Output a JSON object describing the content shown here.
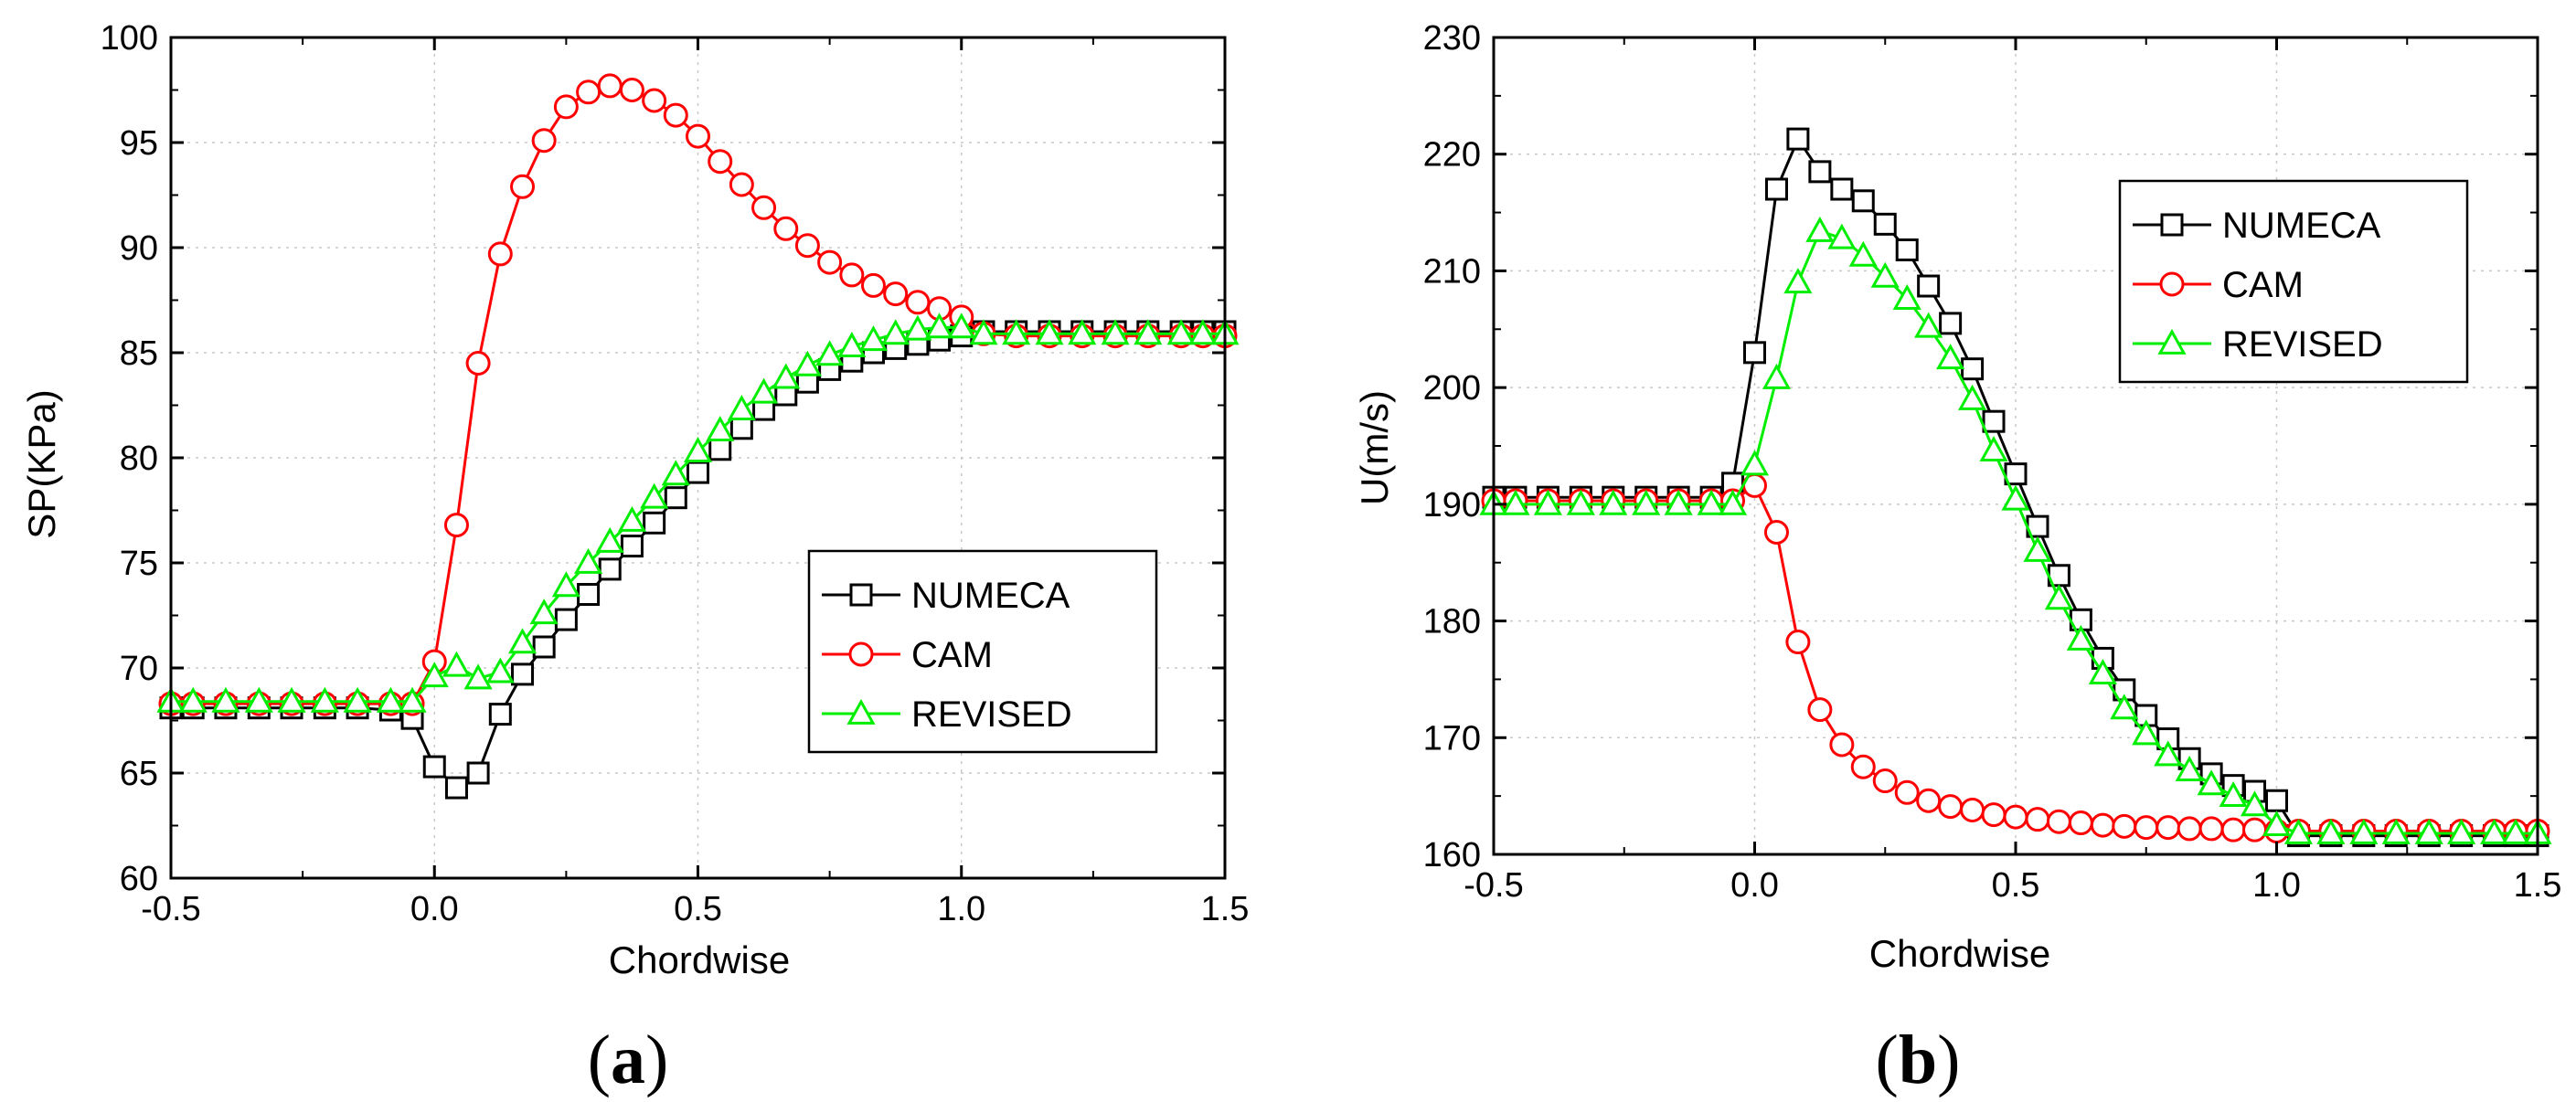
{
  "colors": {
    "NUMECA": "#000000",
    "CAM": "#ff0000",
    "REVISED": "#00ee00",
    "grid": "#c8c8c8"
  },
  "chart_data": [
    {
      "type": "line",
      "caption": {
        "open": "(",
        "letter": "a",
        "close": ")"
      },
      "title": "",
      "xlabel": "Chordwise",
      "ylabel": "SP(KPa)",
      "xlim": [
        -0.5,
        1.5
      ],
      "ylim": [
        60,
        100
      ],
      "xticks": [
        -0.5,
        0.0,
        0.5,
        1.0,
        1.5
      ],
      "xtick_labels": [
        "-0.5",
        "0.0",
        "0.5",
        "1.0",
        "1.5"
      ],
      "yticks": [
        60,
        65,
        70,
        75,
        80,
        85,
        90,
        95,
        100
      ],
      "ytick_labels": [
        "60",
        "65",
        "70",
        "75",
        "80",
        "85",
        "90",
        "95",
        "100"
      ],
      "grid": true,
      "legend_position": "lower-right",
      "series": [
        {
          "name": "NUMECA",
          "marker": "square",
          "x": [
            -0.5,
            -0.458,
            -0.396,
            -0.333,
            -0.271,
            -0.208,
            -0.146,
            -0.083,
            -0.042,
            0.0,
            0.042,
            0.083,
            0.125,
            0.167,
            0.208,
            0.25,
            0.292,
            0.333,
            0.375,
            0.417,
            0.458,
            0.5,
            0.542,
            0.583,
            0.625,
            0.667,
            0.708,
            0.75,
            0.792,
            0.833,
            0.875,
            0.917,
            0.958,
            1.0,
            1.042,
            1.104,
            1.167,
            1.229,
            1.292,
            1.354,
            1.417,
            1.458,
            1.5
          ],
          "y": [
            68.1,
            68.1,
            68.1,
            68.1,
            68.1,
            68.1,
            68.1,
            68.0,
            67.6,
            65.3,
            64.3,
            65.0,
            67.8,
            69.7,
            71.0,
            72.3,
            73.5,
            74.7,
            75.8,
            76.9,
            78.1,
            79.3,
            80.4,
            81.4,
            82.3,
            83.0,
            83.6,
            84.2,
            84.6,
            85.0,
            85.2,
            85.4,
            85.6,
            85.8,
            86.0,
            86.0,
            86.0,
            86.0,
            86.0,
            86.0,
            86.0,
            86.0,
            86.0
          ]
        },
        {
          "name": "CAM",
          "marker": "circle",
          "x": [
            -0.5,
            -0.458,
            -0.396,
            -0.333,
            -0.271,
            -0.208,
            -0.146,
            -0.083,
            -0.042,
            0.0,
            0.042,
            0.083,
            0.125,
            0.167,
            0.208,
            0.25,
            0.292,
            0.333,
            0.375,
            0.417,
            0.458,
            0.5,
            0.542,
            0.583,
            0.625,
            0.667,
            0.708,
            0.75,
            0.792,
            0.833,
            0.875,
            0.917,
            0.958,
            1.0,
            1.042,
            1.104,
            1.167,
            1.229,
            1.292,
            1.354,
            1.417,
            1.458,
            1.5
          ],
          "y": [
            68.3,
            68.3,
            68.3,
            68.3,
            68.3,
            68.3,
            68.3,
            68.3,
            68.3,
            70.3,
            76.8,
            84.5,
            89.7,
            92.9,
            95.1,
            96.7,
            97.4,
            97.7,
            97.5,
            97.0,
            96.3,
            95.3,
            94.1,
            93.0,
            91.9,
            90.9,
            90.1,
            89.3,
            88.7,
            88.2,
            87.8,
            87.4,
            87.1,
            86.7,
            85.9,
            85.8,
            85.8,
            85.8,
            85.8,
            85.8,
            85.8,
            85.8,
            85.8
          ]
        },
        {
          "name": "REVISED",
          "marker": "triangle",
          "x": [
            -0.5,
            -0.458,
            -0.396,
            -0.333,
            -0.271,
            -0.208,
            -0.146,
            -0.083,
            -0.042,
            0.0,
            0.042,
            0.083,
            0.125,
            0.167,
            0.208,
            0.25,
            0.292,
            0.333,
            0.375,
            0.417,
            0.458,
            0.5,
            0.542,
            0.583,
            0.625,
            0.667,
            0.708,
            0.75,
            0.792,
            0.833,
            0.875,
            0.917,
            0.958,
            1.0,
            1.042,
            1.104,
            1.167,
            1.229,
            1.292,
            1.354,
            1.417,
            1.458,
            1.5
          ],
          "y": [
            68.4,
            68.4,
            68.4,
            68.4,
            68.4,
            68.4,
            68.4,
            68.4,
            68.4,
            69.6,
            70.1,
            69.5,
            69.8,
            71.2,
            72.6,
            73.9,
            75.0,
            76.0,
            77.0,
            78.1,
            79.2,
            80.3,
            81.3,
            82.3,
            83.1,
            83.8,
            84.4,
            84.9,
            85.3,
            85.6,
            85.9,
            86.1,
            86.2,
            86.2,
            85.9,
            85.9,
            85.9,
            85.9,
            85.9,
            85.9,
            85.9,
            85.9,
            85.9
          ]
        }
      ]
    },
    {
      "type": "line",
      "caption": {
        "open": "(",
        "letter": "b",
        "close": ")"
      },
      "title": "",
      "xlabel": "Chordwise",
      "ylabel": "U(m/s)",
      "xlim": [
        -0.5,
        1.5
      ],
      "ylim": [
        160,
        230
      ],
      "xticks": [
        -0.5,
        0.0,
        0.5,
        1.0,
        1.5
      ],
      "xtick_labels": [
        "-0.5",
        "0.0",
        "0.5",
        "1.0",
        "1.5"
      ],
      "yticks": [
        160,
        170,
        180,
        190,
        200,
        210,
        220,
        230
      ],
      "ytick_labels": [
        "160",
        "170",
        "180",
        "190",
        "200",
        "210",
        "220",
        "230"
      ],
      "grid": true,
      "legend_position": "top-right",
      "series": [
        {
          "name": "NUMECA",
          "marker": "square",
          "x": [
            -0.5,
            -0.458,
            -0.396,
            -0.333,
            -0.271,
            -0.208,
            -0.146,
            -0.083,
            -0.042,
            0.0,
            0.042,
            0.083,
            0.125,
            0.167,
            0.208,
            0.25,
            0.292,
            0.333,
            0.375,
            0.417,
            0.458,
            0.5,
            0.542,
            0.583,
            0.625,
            0.667,
            0.708,
            0.75,
            0.792,
            0.833,
            0.875,
            0.917,
            0.958,
            1.0,
            1.042,
            1.104,
            1.167,
            1.229,
            1.292,
            1.354,
            1.417,
            1.458,
            1.5
          ],
          "y": [
            190.6,
            190.6,
            190.6,
            190.6,
            190.6,
            190.6,
            190.6,
            190.6,
            191.8,
            203.0,
            217.0,
            221.3,
            218.5,
            217.0,
            216.0,
            214.0,
            211.8,
            208.7,
            205.5,
            201.6,
            197.1,
            192.6,
            188.1,
            183.9,
            180.1,
            176.8,
            174.1,
            171.9,
            169.9,
            168.2,
            166.9,
            165.9,
            165.4,
            164.6,
            161.6,
            161.6,
            161.6,
            161.6,
            161.6,
            161.6,
            161.6,
            161.6,
            161.6
          ]
        },
        {
          "name": "CAM",
          "marker": "circle",
          "x": [
            -0.5,
            -0.458,
            -0.396,
            -0.333,
            -0.271,
            -0.208,
            -0.146,
            -0.083,
            -0.042,
            0.0,
            0.042,
            0.083,
            0.125,
            0.167,
            0.208,
            0.25,
            0.292,
            0.333,
            0.375,
            0.417,
            0.458,
            0.5,
            0.542,
            0.583,
            0.625,
            0.667,
            0.708,
            0.75,
            0.792,
            0.833,
            0.875,
            0.917,
            0.958,
            1.0,
            1.042,
            1.104,
            1.167,
            1.229,
            1.292,
            1.354,
            1.417,
            1.458,
            1.5
          ],
          "y": [
            190.3,
            190.3,
            190.3,
            190.3,
            190.3,
            190.3,
            190.3,
            190.3,
            190.3,
            191.6,
            187.6,
            178.2,
            172.4,
            169.4,
            167.5,
            166.3,
            165.3,
            164.6,
            164.1,
            163.8,
            163.4,
            163.2,
            163.0,
            162.8,
            162.7,
            162.5,
            162.4,
            162.3,
            162.3,
            162.2,
            162.2,
            162.1,
            162.1,
            162.0,
            162.0,
            162.0,
            162.0,
            162.0,
            162.0,
            162.0,
            162.0,
            162.0,
            162.0
          ]
        },
        {
          "name": "REVISED",
          "marker": "triangle",
          "x": [
            -0.5,
            -0.458,
            -0.396,
            -0.333,
            -0.271,
            -0.208,
            -0.146,
            -0.083,
            -0.042,
            0.0,
            0.042,
            0.083,
            0.125,
            0.167,
            0.208,
            0.25,
            0.292,
            0.333,
            0.375,
            0.417,
            0.458,
            0.5,
            0.542,
            0.583,
            0.625,
            0.667,
            0.708,
            0.75,
            0.792,
            0.833,
            0.875,
            0.917,
            0.958,
            1.0,
            1.042,
            1.104,
            1.167,
            1.229,
            1.292,
            1.354,
            1.417,
            1.458,
            1.5
          ],
          "y": [
            190.0,
            190.0,
            190.0,
            190.0,
            190.0,
            190.0,
            190.0,
            190.0,
            190.0,
            193.4,
            200.8,
            209.0,
            213.4,
            212.8,
            211.3,
            209.5,
            207.6,
            205.2,
            202.5,
            199.0,
            194.6,
            190.4,
            186.0,
            181.9,
            178.4,
            175.5,
            172.5,
            170.3,
            168.5,
            167.2,
            166.0,
            165.0,
            164.2,
            162.5,
            161.8,
            161.8,
            161.8,
            161.8,
            161.8,
            161.8,
            161.8,
            161.8,
            161.8
          ]
        }
      ]
    }
  ]
}
